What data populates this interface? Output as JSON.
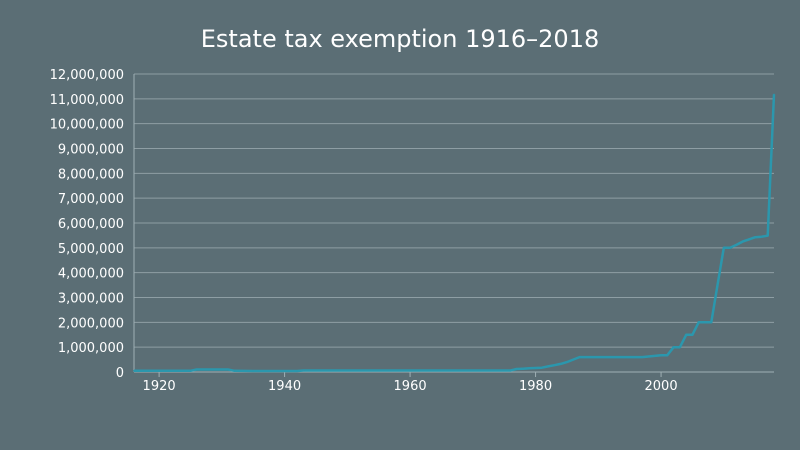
{
  "chart_data": {
    "type": "line",
    "title": "Estate tax exemption 1916–2018",
    "xlabel": "",
    "ylabel": "",
    "xlim": [
      1916,
      2018
    ],
    "ylim": [
      0,
      12000000
    ],
    "x_ticks": [
      1920,
      1940,
      1960,
      1980,
      2000
    ],
    "y_ticks": [
      0,
      1000000,
      2000000,
      3000000,
      4000000,
      5000000,
      6000000,
      7000000,
      8000000,
      9000000,
      10000000,
      11000000,
      12000000
    ],
    "y_tick_labels": [
      "0",
      "1,000,000",
      "2,000,000",
      "3,000,000",
      "4,000,000",
      "5,000,000",
      "6,000,000",
      "7,000,000",
      "8,000,000",
      "9,000,000",
      "10,000,000",
      "11,000,000",
      "12,000,000"
    ],
    "grid": true,
    "legend": "none",
    "colors": {
      "background": "#5b6e75",
      "line": "#2b97ad",
      "grid": "#8e9ea4",
      "text": "#ffffff"
    },
    "series": [
      {
        "points": [
          [
            1916,
            50000
          ],
          [
            1925,
            50000
          ],
          [
            1926,
            100000
          ],
          [
            1931,
            100000
          ],
          [
            1932,
            50000
          ],
          [
            1935,
            40000
          ],
          [
            1942,
            40000
          ],
          [
            1943,
            60000
          ],
          [
            1976,
            60000
          ],
          [
            1977,
            120000
          ],
          [
            1978,
            134000
          ],
          [
            1979,
            147000
          ],
          [
            1980,
            161000
          ],
          [
            1981,
            175000
          ],
          [
            1982,
            225000
          ],
          [
            1983,
            275000
          ],
          [
            1984,
            325000
          ],
          [
            1985,
            400000
          ],
          [
            1986,
            500000
          ],
          [
            1987,
            600000
          ],
          [
            1997,
            600000
          ],
          [
            1998,
            625000
          ],
          [
            1999,
            650000
          ],
          [
            2000,
            675000
          ],
          [
            2001,
            675000
          ],
          [
            2002,
            1000000
          ],
          [
            2003,
            1000000
          ],
          [
            2004,
            1500000
          ],
          [
            2005,
            1500000
          ],
          [
            2006,
            2000000
          ],
          [
            2008,
            2000000
          ],
          [
            2009,
            3500000
          ],
          [
            2010,
            5000000
          ],
          [
            2011,
            5000000
          ],
          [
            2012,
            5120000
          ],
          [
            2013,
            5250000
          ],
          [
            2014,
            5340000
          ],
          [
            2015,
            5430000
          ],
          [
            2016,
            5450000
          ],
          [
            2017,
            5490000
          ],
          [
            2018,
            11180000
          ]
        ]
      }
    ]
  }
}
